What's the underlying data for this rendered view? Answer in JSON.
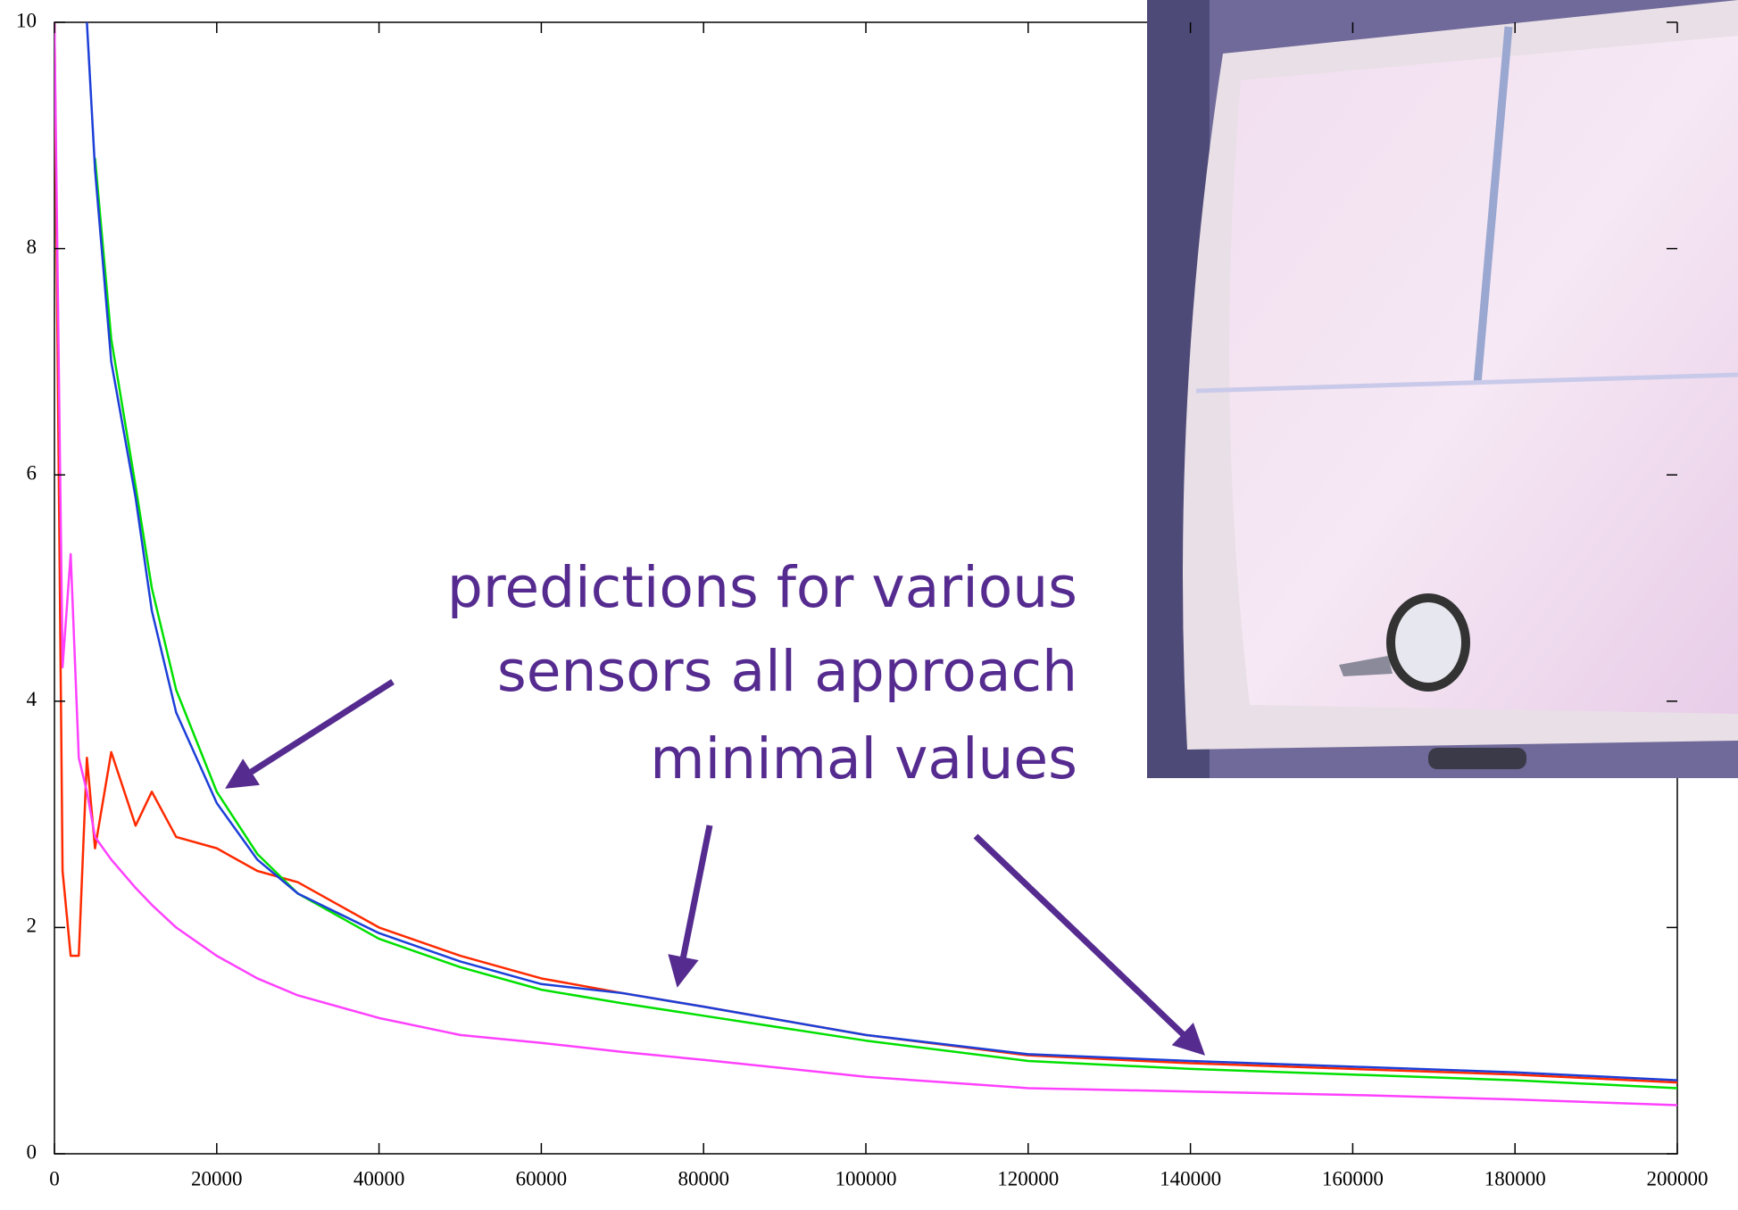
{
  "chart_data": {
    "type": "line",
    "x": [
      0,
      1000,
      2000,
      3000,
      4000,
      5000,
      7000,
      10000,
      12000,
      15000,
      20000,
      25000,
      30000,
      40000,
      50000,
      60000,
      70000,
      80000,
      100000,
      120000,
      140000,
      160000,
      180000,
      200000
    ],
    "series": [
      {
        "color": "#ff2a00",
        "values": [
          10,
          2.5,
          1.75,
          1.75,
          3.5,
          2.7,
          3.55,
          2.9,
          3.2,
          2.8,
          2.7,
          2.5,
          2.4,
          2.0,
          1.75,
          1.55,
          1.42,
          1.3,
          1.05,
          0.87,
          0.8,
          0.75,
          0.7,
          0.63
        ]
      },
      {
        "color": "#00e000",
        "values": [
          null,
          null,
          null,
          null,
          null,
          8.8,
          7.2,
          5.9,
          5.0,
          4.1,
          3.2,
          2.65,
          2.3,
          1.9,
          1.65,
          1.45,
          1.33,
          1.22,
          1.0,
          0.82,
          0.75,
          0.7,
          0.65,
          0.58
        ]
      },
      {
        "color": "#1c3fd8",
        "values": [
          null,
          null,
          null,
          null,
          10,
          8.7,
          7.0,
          5.8,
          4.8,
          3.9,
          3.1,
          2.6,
          2.3,
          1.95,
          1.7,
          1.5,
          1.42,
          1.3,
          1.05,
          0.88,
          0.82,
          0.77,
          0.72,
          0.65
        ]
      },
      {
        "color": "#ff40ff",
        "values": [
          10,
          4.3,
          5.3,
          3.5,
          3.2,
          2.8,
          2.6,
          2.35,
          2.2,
          2.0,
          1.75,
          1.55,
          1.4,
          1.2,
          1.05,
          0.98,
          0.9,
          0.83,
          0.68,
          0.58,
          0.55,
          0.52,
          0.48,
          0.43
        ]
      }
    ],
    "xlim": [
      0,
      200000
    ],
    "xticks": [
      0,
      20000,
      40000,
      60000,
      80000,
      100000,
      120000,
      140000,
      160000,
      180000,
      200000
    ],
    "ylim": [
      0,
      10
    ],
    "yticks": [
      0,
      2,
      4,
      6,
      8,
      10
    ],
    "annotation": [
      "predictions for various",
      "sensors all approach",
      "minimal values"
    ]
  }
}
